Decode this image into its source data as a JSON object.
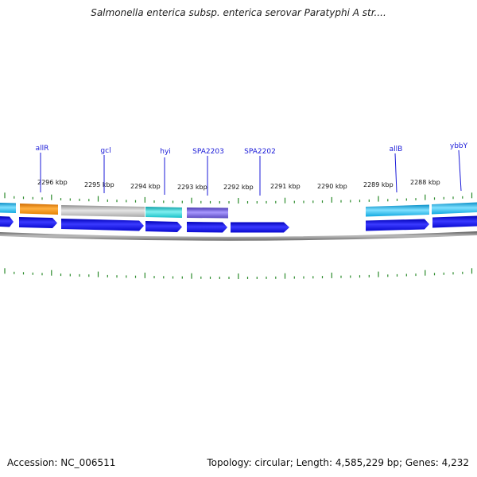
{
  "title": "Salmonella enterica subsp. enterica serovar Paratyphi A str....",
  "footer": {
    "accession": "Accession: NC_006511",
    "summary": "Topology: circular; Length: 4,585,229 bp; Genes: 4,232"
  },
  "colors": {
    "tick": "#2a8a2a",
    "backbone": "#8a8a8a",
    "gene_label": "#1a1ad8",
    "cds": "#1010e8"
  },
  "kbp_labels": [
    "2296 kbp",
    "2295 kbp",
    "2294 kbp",
    "2293 kbp",
    "2292 kbp",
    "2291 kbp",
    "2290 kbp",
    "2289 kbp",
    "2288 kbp"
  ],
  "gene_labels": [
    "allR",
    "gcl",
    "hyi",
    "SPA2203",
    "SPA2202",
    "allB",
    "ybbY"
  ],
  "feature_colors": {
    "cyan": "#19b6e3",
    "orange": "#f08a10",
    "gray": "#b8b8b8",
    "teal": "#18c8c8",
    "purple": "#6a5ad0"
  }
}
